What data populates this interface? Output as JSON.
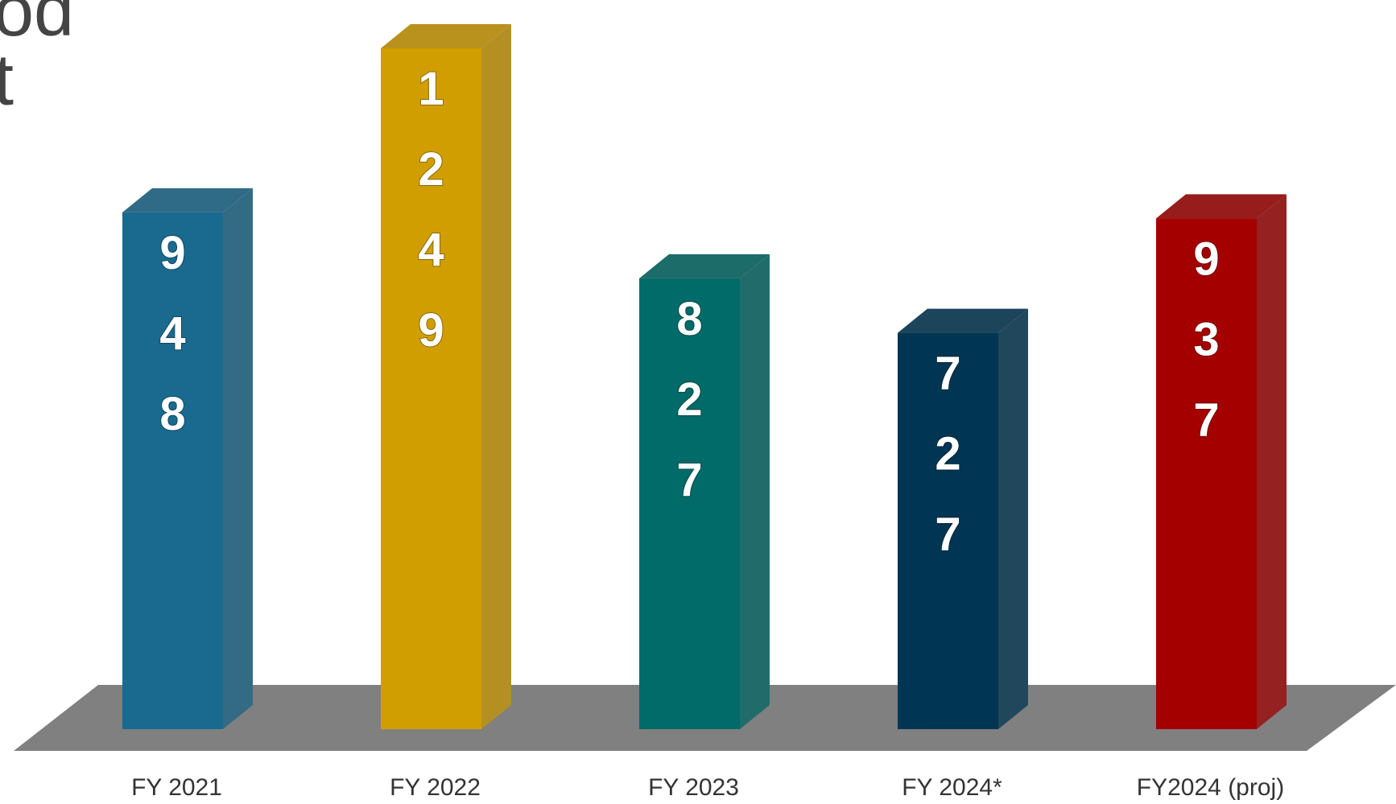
{
  "title_lines": [
    "od",
    "t"
  ],
  "chart_data": {
    "type": "bar3d",
    "categories": [
      "FY 2021",
      "FY 2022",
      "FY 2023",
      "FY 2024*",
      "FY2024 (proj)"
    ],
    "values": [
      948,
      1249,
      827,
      727,
      937
    ],
    "colors": [
      "#1a6a8f",
      "#d19e00",
      "#006b68",
      "#003654",
      "#a50000"
    ]
  }
}
